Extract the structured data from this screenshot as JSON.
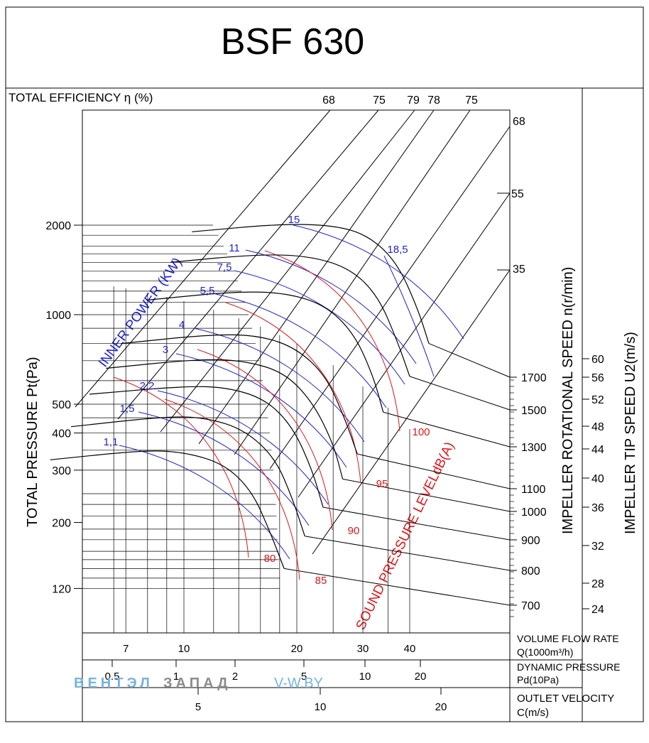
{
  "title": "BSF 630",
  "chart_data": {
    "type": "line",
    "title": "BSF 630",
    "efficiency": {
      "label": "TOTAL EFFICIENCY η (%)",
      "top_values": [
        "68",
        "75",
        "79",
        "78",
        "75"
      ],
      "right_values": [
        "68",
        "55",
        "35"
      ]
    },
    "y_axis": {
      "label": "TOTAL PRESSURE Pt(Pa)",
      "unit": "Pa",
      "scale": "log",
      "ticks": [
        2000,
        1000,
        500,
        400,
        300,
        200,
        120
      ],
      "tick_labels": [
        "2000",
        "1000",
        "500",
        "400",
        "300",
        "200",
        "120"
      ]
    },
    "x_axes": [
      {
        "label": "VOLUME FLOW RATE",
        "unit_label": "Q(1000m³/h)",
        "ticks": [
          "7",
          "10",
          "20",
          "30",
          "40"
        ]
      },
      {
        "label": "DYNAMIC PRESSURE",
        "unit_label": "Pd(10Pa)",
        "ticks": [
          "0.5",
          "1",
          "2",
          "5",
          "10",
          "20"
        ]
      },
      {
        "label": "OUTLET VELOCITY",
        "unit_label": "C(m/s)",
        "ticks": [
          "5",
          "10",
          "20"
        ]
      }
    ],
    "speed_axis": {
      "label": "IMPELLER ROTATIONAL SPEED n(r/min)",
      "values": [
        "1700",
        "1500",
        "1300",
        "1100",
        "1000",
        "900",
        "800",
        "700"
      ]
    },
    "tip_speed_axis": {
      "label": "IMPELLER TIP SPEED U2(m/s)",
      "values": [
        "60",
        "56",
        "52",
        "48",
        "44",
        "40",
        "36",
        "32",
        "28",
        "24"
      ]
    },
    "power": {
      "label": "INNER POWER (KW)",
      "values": [
        "15",
        "11",
        "7,5",
        "5,5",
        "4",
        "3",
        "2,2",
        "1,5",
        "1,1",
        "18,5"
      ]
    },
    "sound": {
      "label": "SOUND PRESSURE LEVELdB(A)",
      "values": [
        "100",
        "95",
        "90",
        "85",
        "80"
      ]
    },
    "series": [
      {
        "name": "n=1700 r/min",
        "speed": 1700,
        "points": [
          [
            10.5,
            1900
          ],
          [
            18,
            2020
          ],
          [
            25,
            2000
          ],
          [
            31,
            1850
          ],
          [
            37,
            1500
          ],
          [
            42,
            1050
          ],
          [
            45,
            800
          ]
        ]
      },
      {
        "name": "n=1500 r/min",
        "speed": 1500,
        "points": [
          [
            9.2,
            1500
          ],
          [
            16,
            1600
          ],
          [
            22,
            1570
          ],
          [
            28,
            1420
          ],
          [
            33,
            1150
          ],
          [
            37,
            820
          ],
          [
            40,
            620
          ]
        ]
      },
      {
        "name": "n=1300 r/min",
        "speed": 1300,
        "points": [
          [
            8,
            1120
          ],
          [
            14,
            1200
          ],
          [
            19,
            1180
          ],
          [
            24,
            1070
          ],
          [
            28.5,
            860
          ],
          [
            32,
            620
          ],
          [
            34,
            470
          ]
        ]
      },
      {
        "name": "n=1100 r/min",
        "speed": 1100,
        "points": [
          [
            6.8,
            800
          ],
          [
            12,
            860
          ],
          [
            16,
            850
          ],
          [
            20,
            770
          ],
          [
            24,
            620
          ],
          [
            27,
            440
          ],
          [
            29,
            340
          ]
        ]
      },
      {
        "name": "n=1000 r/min",
        "speed": 1000,
        "points": [
          [
            6.2,
            660
          ],
          [
            11,
            710
          ],
          [
            14.5,
            700
          ],
          [
            18.5,
            640
          ],
          [
            22,
            510
          ],
          [
            25,
            370
          ],
          [
            26.5,
            280
          ]
        ]
      },
      {
        "name": "n=900 r/min",
        "speed": 900,
        "points": [
          [
            5.6,
            540
          ],
          [
            10,
            575
          ],
          [
            13,
            570
          ],
          [
            16.5,
            520
          ],
          [
            19.5,
            420
          ],
          [
            22,
            300
          ],
          [
            23.5,
            225
          ]
        ]
      },
      {
        "name": "n=800 r/min",
        "speed": 800,
        "points": [
          [
            5,
            420
          ],
          [
            9,
            455
          ],
          [
            11.5,
            450
          ],
          [
            14.5,
            410
          ],
          [
            17.5,
            330
          ],
          [
            19.5,
            240
          ],
          [
            21,
            180
          ]
        ]
      },
      {
        "name": "n=700 r/min",
        "speed": 700,
        "points": [
          [
            4.4,
            325
          ],
          [
            7.8,
            350
          ],
          [
            10,
            345
          ],
          [
            12.8,
            315
          ],
          [
            15.2,
            255
          ],
          [
            17,
            185
          ],
          [
            18.5,
            140
          ]
        ]
      }
    ]
  },
  "watermark": {
    "part1": "ВЕНТЭЛ",
    "part2": "ЗАПАД",
    "site": "V-W.BY"
  },
  "colors": {
    "curve": "#000000",
    "power": "#1f22d6",
    "sound": "#e0161a",
    "watermark_blue": "#78b4dc",
    "watermark_gray": "#8c8c8c"
  }
}
